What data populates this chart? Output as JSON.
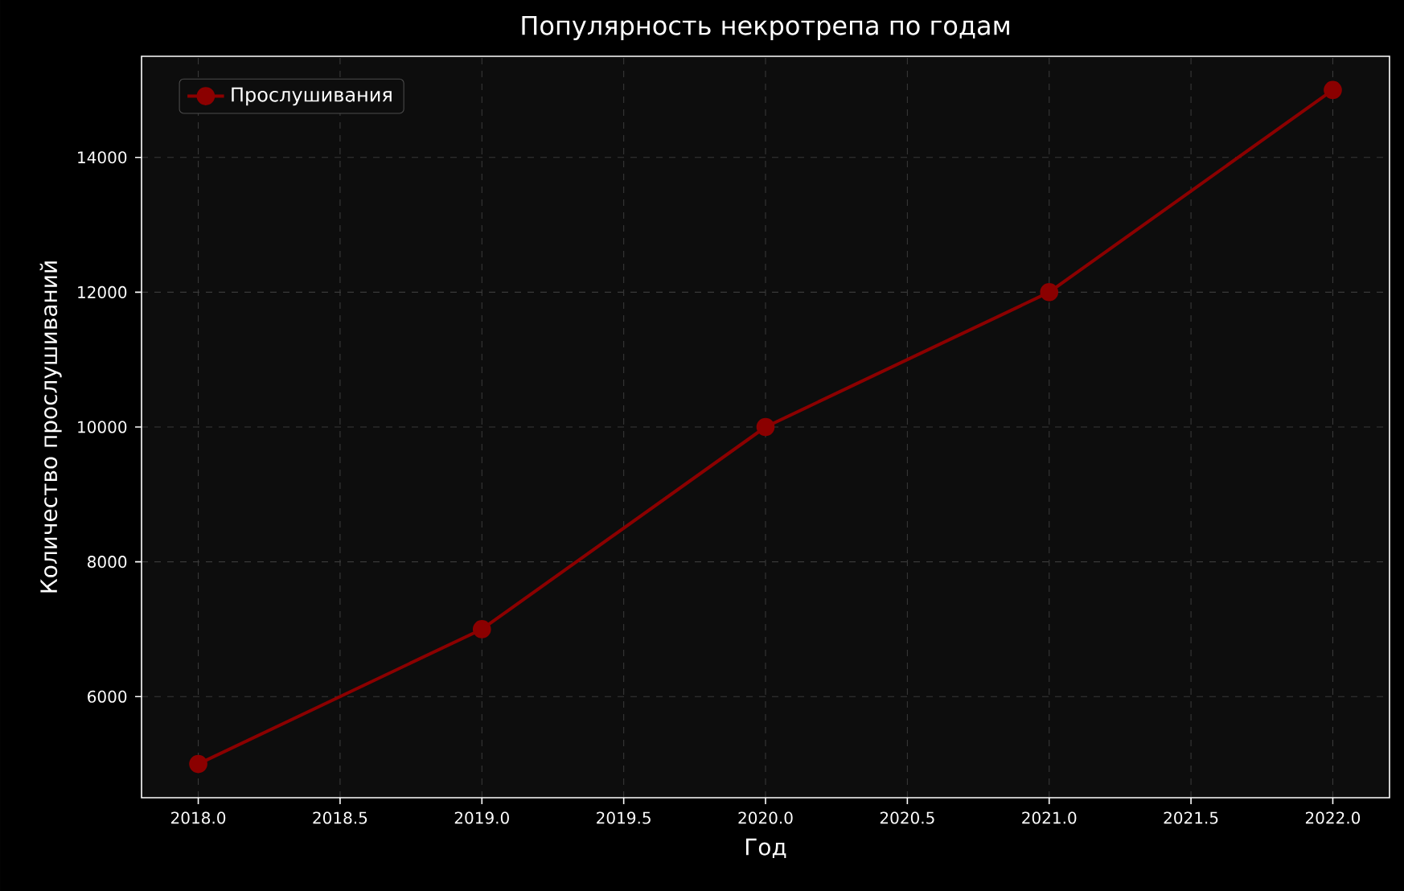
{
  "chart_data": {
    "type": "line",
    "title": "Популярность некротрепа по годам",
    "xlabel": "Год",
    "ylabel": "Количество прослушиваний",
    "x": [
      2018,
      2019,
      2020,
      2021,
      2022
    ],
    "series": [
      {
        "name": "Прослушивания",
        "color": "#8b0000",
        "values": [
          5000,
          7000,
          10000,
          12000,
          15000
        ]
      }
    ],
    "xlim": [
      2017.8,
      2022.2
    ],
    "ylim": [
      4500,
      15500
    ],
    "xticks": [
      {
        "value": 2018,
        "label": "2018.0"
      },
      {
        "value": 2018.5,
        "label": "2018.5"
      },
      {
        "value": 2019,
        "label": "2019.0"
      },
      {
        "value": 2019.5,
        "label": "2019.5"
      },
      {
        "value": 2020,
        "label": "2020.0"
      },
      {
        "value": 2020.5,
        "label": "2020.5"
      },
      {
        "value": 2021,
        "label": "2021.0"
      },
      {
        "value": 2021.5,
        "label": "2021.5"
      },
      {
        "value": 2022,
        "label": "2022.0"
      }
    ],
    "yticks": [
      6000,
      8000,
      10000,
      12000,
      14000
    ],
    "grid": true,
    "legend": "top left",
    "marker": "circle",
    "line_style": "solid"
  }
}
